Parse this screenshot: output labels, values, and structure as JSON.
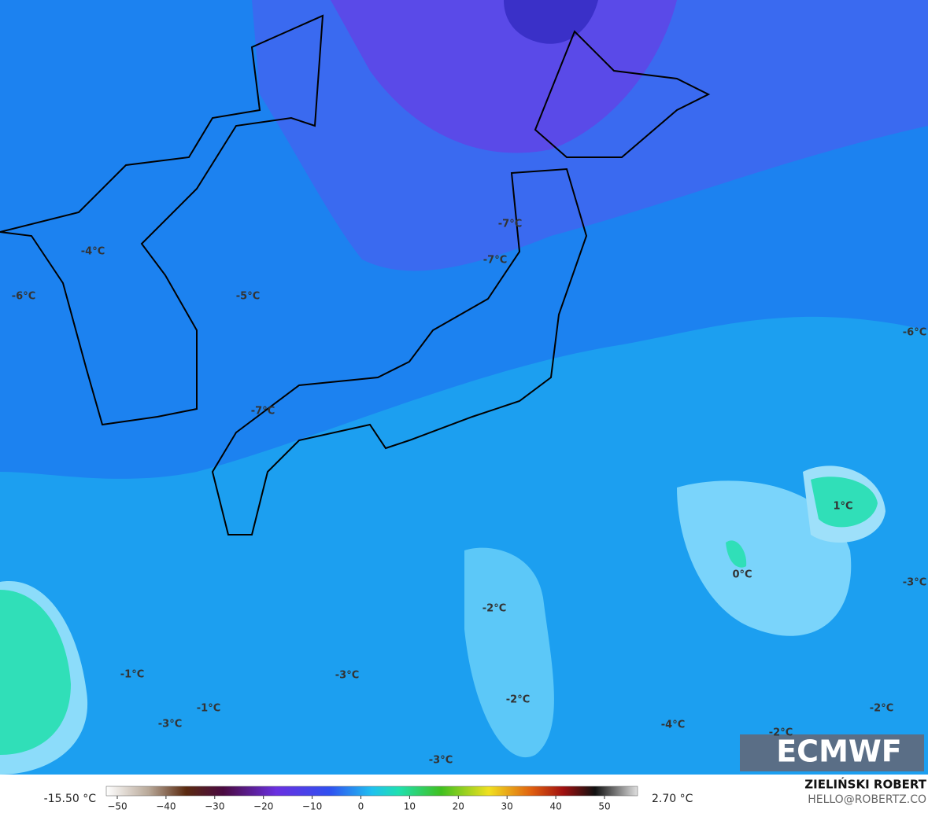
{
  "labels": [
    {
      "text": "-4°C"
    },
    {
      "text": "-6°C"
    },
    {
      "text": "-5°C"
    },
    {
      "text": "-7°C"
    },
    {
      "text": "-7°C"
    },
    {
      "text": "-7°C"
    },
    {
      "text": "-6°C"
    },
    {
      "text": "1°C"
    },
    {
      "text": "0°C"
    },
    {
      "text": "-3°C"
    },
    {
      "text": "-2°C"
    },
    {
      "text": "-1°C"
    },
    {
      "text": "-3°C"
    },
    {
      "text": "-2°C"
    },
    {
      "text": "-1°C"
    },
    {
      "text": "-3°C"
    },
    {
      "text": "-4°C"
    },
    {
      "text": "-2°C"
    },
    {
      "text": "-2°C"
    },
    {
      "text": "-3°C"
    }
  ],
  "colorbar": {
    "min_label": "-15.50 °C",
    "max_label": "2.70 °C",
    "ticks": [
      "−50",
      "−40",
      "−30",
      "−20",
      "−10",
      "0",
      "10",
      "20",
      "30",
      "40",
      "50"
    ]
  },
  "logo": "ECMWF",
  "credit": {
    "name": "ZIELIŃSKI ROBERT",
    "contact": "HELLO@ROBERTZ.CO"
  }
}
